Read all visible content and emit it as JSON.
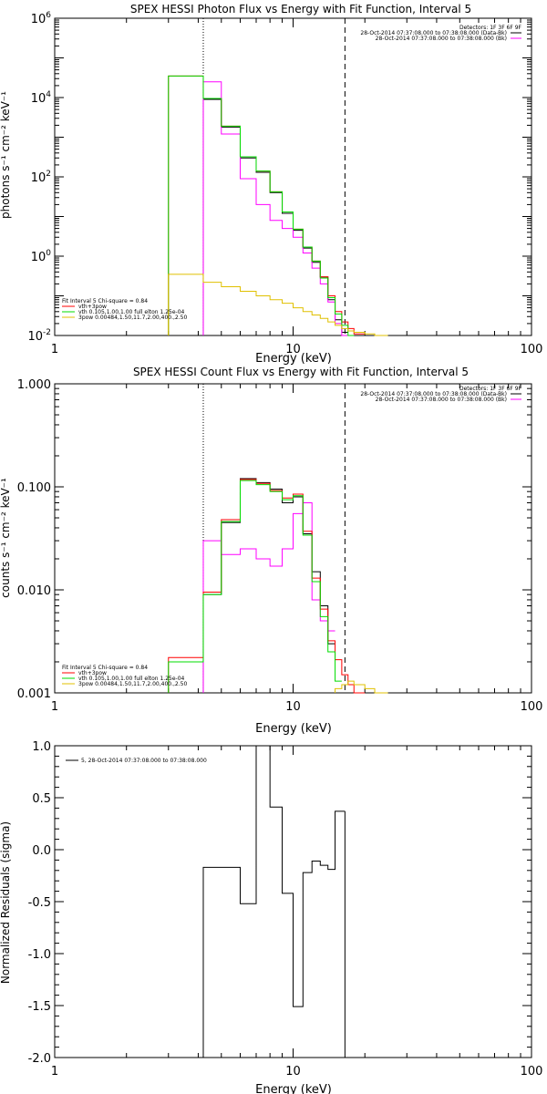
{
  "chart_data": [
    {
      "type": "line",
      "title": "SPEX HESSI Photon Flux vs Energy with Fit Function, Interval 5",
      "xlabel": "Energy (keV)",
      "ylabel": "photons s⁻¹ cm⁻² keV⁻¹",
      "xscale": "log",
      "yscale": "log",
      "xlim": [
        1,
        100
      ],
      "ylim": [
        0.01,
        1000000
      ],
      "x_tick_labels": [
        "1",
        "10",
        "100"
      ],
      "y_tick_labels": [
        {
          "value": 1000000,
          "label": "10^6"
        },
        {
          "value": 10000,
          "label": "10^4"
        },
        {
          "value": 100,
          "label": "10^2"
        },
        {
          "value": 1,
          "label": "10^0"
        },
        {
          "value": 0.01,
          "label": "10^-2"
        }
      ],
      "vlines": [
        {
          "x": 4.2,
          "style": "dotted"
        },
        {
          "x": 16.5,
          "style": "dashed"
        }
      ],
      "legend_top_right": [
        "Detectors: 1F 3F 6F 9F",
        "28-Oct-2014 07:37:08.000 to 07:38:08.000 (Data-Bk)",
        "28-Oct-2014 07:37:08.000 to 07:38:08.000 (Bk)"
      ],
      "legend_bottom_left": [
        "Fit Interval 5   Chi-square = 0.84",
        "vth+3pow",
        "vth 0.105,1.00,1.00  full elton 1.25e-04",
        "3pow 0.00484,1.50,11.7,2.00,400.,2.50"
      ],
      "bin_edges": [
        3.0,
        4.2,
        5.0,
        6.0,
        7.0,
        8.0,
        9.0,
        10.0,
        11.0,
        12.0,
        13.0,
        14.0,
        15.0,
        16.0,
        17.0,
        18.0,
        20.0,
        22.0,
        25.0
      ],
      "series": [
        {
          "name": "Data-Bk",
          "color": "#000000",
          "values": [
            null,
            9000,
            1800,
            300,
            130,
            40,
            12,
            4.5,
            1.6,
            0.7,
            0.3,
            0.08,
            0.025,
            0.012,
            null,
            null,
            null,
            null
          ]
        },
        {
          "name": "Bk",
          "color": "#ff00ff",
          "values": [
            null,
            25000,
            1200,
            90,
            20,
            8,
            5,
            3,
            1.2,
            0.5,
            0.2,
            0.07,
            0.02,
            0.01,
            null,
            null,
            null,
            null
          ]
        },
        {
          "name": "vth+3pow",
          "color": "#ff0000",
          "values": [
            35000,
            9500,
            1900,
            320,
            140,
            42,
            13,
            4.8,
            1.7,
            0.75,
            0.3,
            0.1,
            0.04,
            0.022,
            0.015,
            0.011,
            null,
            null
          ]
        },
        {
          "name": "vth",
          "color": "#00dd00",
          "values": [
            35000,
            9500,
            1900,
            320,
            140,
            42,
            13,
            4.8,
            1.7,
            0.75,
            0.28,
            0.09,
            0.035,
            0.018,
            0.01,
            null,
            null,
            null
          ]
        },
        {
          "name": "3pow",
          "color": "#e0c000",
          "values": [
            0.35,
            0.22,
            0.17,
            0.13,
            0.1,
            0.08,
            0.065,
            0.05,
            0.04,
            0.033,
            0.027,
            0.022,
            0.018,
            0.015,
            0.013,
            0.012,
            0.011,
            0.01
          ]
        }
      ]
    },
    {
      "type": "line",
      "title": "SPEX HESSI Count Flux vs Energy with Fit Function, Interval 5",
      "xlabel": "Energy (keV)",
      "ylabel": "counts s⁻¹ cm⁻² keV⁻¹",
      "xscale": "log",
      "yscale": "log",
      "xlim": [
        1,
        100
      ],
      "ylim": [
        0.001,
        1.0
      ],
      "x_tick_labels": [
        "1",
        "10",
        "100"
      ],
      "y_tick_labels": [
        {
          "value": 1.0,
          "label": "1.000"
        },
        {
          "value": 0.1,
          "label": "0.100"
        },
        {
          "value": 0.01,
          "label": "0.010"
        },
        {
          "value": 0.001,
          "label": "0.001"
        }
      ],
      "vlines": [
        {
          "x": 4.2,
          "style": "dotted"
        },
        {
          "x": 16.5,
          "style": "dashed"
        }
      ],
      "legend_top_right": [
        "Detectors: 1F 3F 6F 9F",
        "28-Oct-2014 07:37:08.000 to 07:38:08.000 (Data-Bk)",
        "28-Oct-2014 07:37:08.000 to 07:38:08.000 (Bk)"
      ],
      "legend_bottom_left": [
        "Fit Interval 5   Chi-square = 0.84",
        "vth+3pow",
        "vth 0.105,1.00,1.00  full elton 1.25e-04",
        "3pow 0.00484,1.50,11.7,2.00,400.,2.50"
      ],
      "bin_edges": [
        3.0,
        4.2,
        5.0,
        6.0,
        7.0,
        8.0,
        9.0,
        10.0,
        11.0,
        12.0,
        13.0,
        14.0,
        15.0,
        16.0,
        17.0,
        18.0,
        20.0,
        22.0,
        25.0
      ],
      "series": [
        {
          "name": "Data-Bk",
          "color": "#000000",
          "values": [
            null,
            0.009,
            0.045,
            0.12,
            0.11,
            0.095,
            0.07,
            0.08,
            0.035,
            0.015,
            0.007,
            0.003,
            null,
            null,
            null,
            null,
            null,
            null
          ]
        },
        {
          "name": "Bk",
          "color": "#ff00ff",
          "values": [
            null,
            0.03,
            0.022,
            0.025,
            0.02,
            0.017,
            0.025,
            0.055,
            0.07,
            0.008,
            0.005,
            0.004,
            null,
            null,
            null,
            null,
            null,
            null
          ]
        },
        {
          "name": "vth+3pow",
          "color": "#ff0000",
          "values": [
            0.0022,
            0.0095,
            0.048,
            0.118,
            0.108,
            0.092,
            0.078,
            0.085,
            0.037,
            0.013,
            0.0065,
            0.0032,
            0.0021,
            0.0015,
            0.0012,
            0.001,
            null,
            null
          ]
        },
        {
          "name": "vth",
          "color": "#00dd00",
          "values": [
            0.002,
            0.009,
            0.046,
            0.115,
            0.105,
            0.09,
            0.075,
            0.082,
            0.034,
            0.012,
            0.0055,
            0.0025,
            0.0013,
            null,
            null,
            null,
            null,
            null
          ]
        },
        {
          "name": "3pow",
          "color": "#e0c000",
          "values": [
            null,
            null,
            null,
            null,
            null,
            null,
            null,
            null,
            null,
            null,
            null,
            null,
            0.0011,
            0.0012,
            0.0013,
            0.0012,
            0.0011,
            0.001
          ]
        }
      ]
    },
    {
      "type": "line",
      "title": "",
      "xlabel": "Energy (keV)",
      "ylabel": "Normalized Residuals (sigma)",
      "xscale": "log",
      "yscale": "linear",
      "xlim": [
        1,
        100
      ],
      "ylim": [
        -2.0,
        1.0
      ],
      "x_tick_labels": [
        "1",
        "10",
        "100"
      ],
      "y_tick_labels": [
        "1.0",
        "0.5",
        "0.0",
        "-0.5",
        "-1.0",
        "-1.5",
        "-2.0"
      ],
      "legend": "5, 28-Oct-2014 07:37:08.000 to 07:38:08.000",
      "bin_edges": [
        4.2,
        5.0,
        6.0,
        7.0,
        8.0,
        9.0,
        10.0,
        11.0,
        12.0,
        13.0,
        14.0,
        15.0,
        16.5
      ],
      "series": [
        {
          "name": "5, 28-Oct-2014 07:37:08.000 to 07:38:08.000",
          "color": "#000000",
          "values": [
            -0.17,
            -0.17,
            -0.52,
            1.0,
            0.41,
            -0.42,
            -1.51,
            -0.22,
            -0.11,
            -0.15,
            -0.19,
            0.37
          ]
        }
      ]
    }
  ]
}
